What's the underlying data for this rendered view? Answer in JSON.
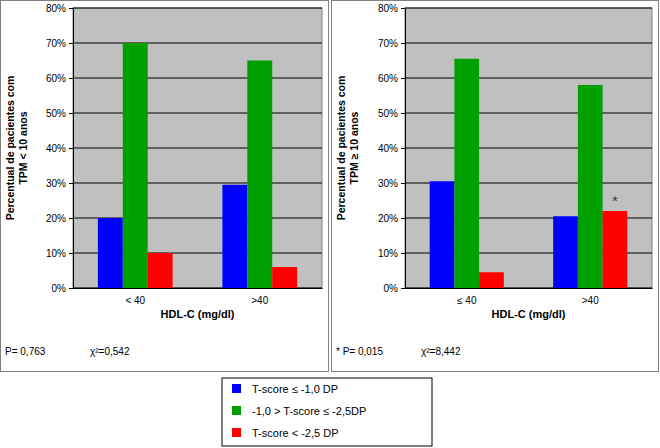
{
  "chart_data": [
    {
      "type": "bar",
      "ylabel": [
        "Percentual de pacientes com",
        "TPM < 10 anos"
      ],
      "xlabel": "HDL-C (mg/dl)",
      "categories": [
        "< 40",
        ">40"
      ],
      "series": [
        {
          "name": "T-score ≤ -1,0 DP",
          "color": "#0000ff",
          "values": [
            20,
            29.5
          ]
        },
        {
          "name": "-1,0 > T-score ≤ -2,5DP",
          "color": "#00a000",
          "values": [
            70,
            65
          ]
        },
        {
          "name": "T-score < -2,5 DP",
          "color": "#ff0000",
          "values": [
            10,
            6
          ]
        }
      ],
      "ylim": [
        0,
        80
      ],
      "yticks": [
        {
          "value": 0,
          "label": "0%"
        },
        {
          "value": 10,
          "label": "10%"
        },
        {
          "value": 20,
          "label": "20%"
        },
        {
          "value": 30,
          "label": "30%"
        },
        {
          "value": 40,
          "label": "40%"
        },
        {
          "value": 50,
          "label": "50%"
        },
        {
          "value": 60,
          "label": "60%"
        },
        {
          "value": 70,
          "label": "70%"
        },
        {
          "value": 80,
          "label": "80%"
        }
      ],
      "grid": true,
      "legend": "bottom",
      "annotations": [
        {
          "text": "P= 0,763"
        },
        {
          "text": "χ²=0,542"
        }
      ]
    },
    {
      "type": "bar",
      "ylabel": [
        "Percentual de pacientes com",
        "TPM ≥ 10 anos"
      ],
      "xlabel": "HDL-C (mg/dl)",
      "categories": [
        "≤ 40",
        ">40"
      ],
      "series": [
        {
          "color": "#0000ff",
          "values": [
            30.5,
            20.5
          ]
        },
        {
          "color": "#00a000",
          "values": [
            65.5,
            58
          ]
        },
        {
          "color": "#ff0000",
          "values": [
            4.5,
            22
          ]
        }
      ],
      "ylim": [
        0,
        80
      ],
      "yticks": [
        {
          "value": 0,
          "label": "0%"
        },
        {
          "value": 10,
          "label": "10%"
        },
        {
          "value": 20,
          "label": "20%"
        },
        {
          "value": 30,
          "label": "30%"
        },
        {
          "value": 40,
          "label": "40%"
        },
        {
          "value": 50,
          "label": "50%"
        },
        {
          "value": 60,
          "label": "60%"
        },
        {
          "value": 70,
          "label": "70%"
        },
        {
          "value": 80,
          "label": "80%"
        }
      ],
      "grid": true,
      "annotations": [
        {
          "text": "* P= 0,015"
        },
        {
          "text": "χ²=8,442"
        },
        {
          "text": "*",
          "series": 2,
          "category": 1
        }
      ]
    }
  ]
}
